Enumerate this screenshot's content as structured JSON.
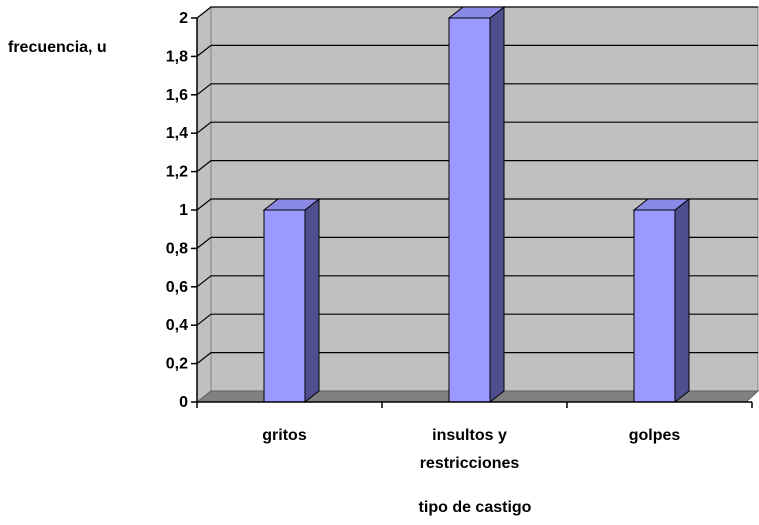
{
  "chart_data": {
    "type": "bar",
    "categories": [
      "gritos",
      "insultos y\nrestricciones",
      "golpes"
    ],
    "values": [
      1,
      2,
      1
    ],
    "ylabel": "frecuencia, u",
    "xlabel": "tipo de castigo",
    "ylim": [
      0,
      2
    ],
    "ytick_step": 0.2,
    "yticks": [
      "0",
      "0,2",
      "0,4",
      "0,6",
      "0,8",
      "1",
      "1,2",
      "1,4",
      "1,6",
      "1,8",
      "2"
    ],
    "grid": true,
    "legend": false,
    "three_d": true
  },
  "colors": {
    "plot_wall": "#c0c0c0",
    "plot_floor": "#808080",
    "bar_front": "#9999ff",
    "bar_side": "#4f4f8f",
    "bar_top": "#8a8ae6",
    "gridline": "#000000",
    "axis": "#000000"
  }
}
